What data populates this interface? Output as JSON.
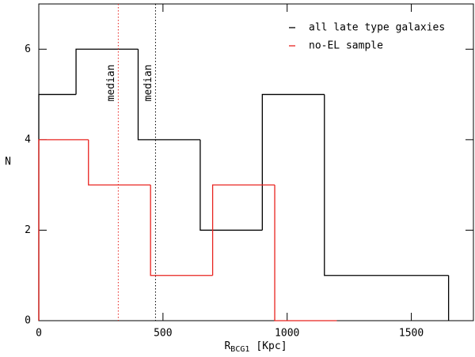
{
  "chart_data": {
    "type": "histogram",
    "xlabel": {
      "main": "R",
      "sub": "BCG1",
      "unit": "[Kpc]"
    },
    "ylabel": "N",
    "xlim": [
      0,
      1750
    ],
    "ylim": [
      0,
      7
    ],
    "xticks": [
      0,
      500,
      1000,
      1500
    ],
    "yticks": [
      0,
      2,
      4,
      6
    ],
    "legend": "upper right",
    "series": [
      {
        "name": "all late type galaxies",
        "color": "#000000",
        "bins": [
          0,
          150,
          400,
          650,
          900,
          1150,
          1650
        ],
        "counts": [
          5,
          6,
          4,
          2,
          5,
          1
        ],
        "median": 470,
        "median_label": "median"
      },
      {
        "name": "no-EL sample",
        "color": "#e8231f",
        "bins": [
          0,
          200,
          450,
          700,
          950,
          1200
        ],
        "counts": [
          4,
          3,
          1,
          3,
          0
        ],
        "median": 320,
        "median_label": "median"
      }
    ]
  }
}
